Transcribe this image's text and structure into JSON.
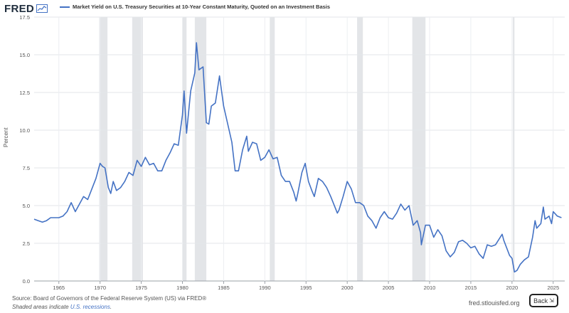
{
  "header": {
    "logo_text": "FRED",
    "logo_icon": "line-chart-icon"
  },
  "chart_data": {
    "type": "line",
    "title": "",
    "xlabel": "",
    "ylabel": "Percent",
    "xlim": [
      1962.0,
      2026.4
    ],
    "ylim": [
      0,
      17.5
    ],
    "grid": true,
    "legend": "top-left",
    "x_ticks": [
      "1965",
      "1970",
      "1975",
      "1980",
      "1985",
      "1990",
      "1995",
      "2000",
      "2005",
      "2010",
      "2015",
      "2020",
      "2025"
    ],
    "x_tick_values": [
      1965,
      1970,
      1975,
      1980,
      1985,
      1990,
      1995,
      2000,
      2005,
      2010,
      2015,
      2020,
      2025
    ],
    "y_ticks": [
      "0.0",
      "2.5",
      "5.0",
      "7.5",
      "10.0",
      "12.5",
      "15.0",
      "17.5"
    ],
    "y_tick_values": [
      0,
      2.5,
      5,
      7.5,
      10,
      12.5,
      15,
      17.5
    ],
    "recessions": [
      [
        1969.9,
        1970.9
      ],
      [
        1973.9,
        1975.2
      ],
      [
        1980.0,
        1980.5
      ],
      [
        1981.5,
        1982.9
      ],
      [
        1990.6,
        1991.2
      ],
      [
        2001.2,
        2001.9
      ],
      [
        2007.9,
        2009.5
      ],
      [
        2020.1,
        2020.3
      ]
    ],
    "line_color": "#4472c4",
    "recession_color": "#e3e5e8",
    "series": [
      {
        "name": "Market Yield on U.S. Treasury Securities at 10-Year Constant Maturity, Quoted on an Investment Basis",
        "x": [
          1962.0,
          1962.5,
          1963.0,
          1963.5,
          1964.0,
          1964.5,
          1965.0,
          1965.5,
          1966.0,
          1966.5,
          1967.0,
          1967.5,
          1968.0,
          1968.5,
          1969.0,
          1969.5,
          1970.0,
          1970.3,
          1970.6,
          1971.0,
          1971.3,
          1971.6,
          1972.0,
          1972.5,
          1973.0,
          1973.5,
          1974.0,
          1974.5,
          1975.0,
          1975.5,
          1976.0,
          1976.5,
          1977.0,
          1977.5,
          1978.0,
          1978.5,
          1979.0,
          1979.5,
          1980.0,
          1980.2,
          1980.5,
          1980.8,
          1981.0,
          1981.5,
          1981.7,
          1982.0,
          1982.5,
          1982.9,
          1983.2,
          1983.5,
          1984.0,
          1984.5,
          1985.0,
          1985.5,
          1986.0,
          1986.4,
          1986.8,
          1987.3,
          1987.8,
          1988.0,
          1988.5,
          1989.0,
          1989.5,
          1990.0,
          1990.5,
          1991.0,
          1991.5,
          1992.0,
          1992.5,
          1993.0,
          1993.5,
          1993.8,
          1994.0,
          1994.5,
          1994.9,
          1995.3,
          1995.7,
          1996.0,
          1996.5,
          1997.0,
          1997.5,
          1998.0,
          1998.8,
          1999.0,
          1999.5,
          2000.0,
          2000.5,
          2001.0,
          2001.5,
          2002.0,
          2002.5,
          2003.0,
          2003.5,
          2004.0,
          2004.5,
          2005.0,
          2005.5,
          2006.0,
          2006.5,
          2007.0,
          2007.5,
          2008.0,
          2008.5,
          2008.9,
          2009.0,
          2009.5,
          2010.0,
          2010.5,
          2011.0,
          2011.5,
          2012.0,
          2012.5,
          2013.0,
          2013.5,
          2014.0,
          2014.5,
          2015.0,
          2015.5,
          2016.0,
          2016.5,
          2017.0,
          2017.5,
          2018.0,
          2018.8,
          2019.0,
          2019.7,
          2020.0,
          2020.3,
          2020.6,
          2021.0,
          2021.5,
          2022.0,
          2022.5,
          2022.8,
          2023.0,
          2023.5,
          2023.8,
          2024.0,
          2024.5,
          2024.8,
          2025.0,
          2025.5,
          2026.0
        ],
        "values": [
          4.1,
          4.0,
          3.9,
          4.0,
          4.2,
          4.2,
          4.2,
          4.3,
          4.6,
          5.2,
          4.6,
          5.1,
          5.6,
          5.4,
          6.1,
          6.8,
          7.8,
          7.6,
          7.5,
          6.2,
          5.8,
          6.6,
          6.0,
          6.2,
          6.6,
          7.2,
          7.0,
          8.0,
          7.6,
          8.2,
          7.7,
          7.8,
          7.3,
          7.3,
          8.0,
          8.5,
          9.1,
          9.0,
          11.0,
          12.6,
          9.8,
          11.5,
          12.6,
          13.8,
          15.8,
          14.0,
          14.2,
          10.5,
          10.4,
          11.6,
          11.8,
          13.6,
          11.6,
          10.4,
          9.2,
          7.3,
          7.3,
          8.7,
          9.6,
          8.6,
          9.2,
          9.1,
          8.0,
          8.2,
          8.7,
          8.1,
          8.2,
          7.0,
          6.6,
          6.6,
          5.9,
          5.3,
          5.8,
          7.2,
          7.8,
          6.6,
          6.0,
          5.6,
          6.8,
          6.6,
          6.2,
          5.6,
          4.5,
          4.7,
          5.6,
          6.6,
          6.1,
          5.2,
          5.2,
          5.0,
          4.3,
          4.0,
          3.5,
          4.2,
          4.6,
          4.2,
          4.1,
          4.5,
          5.1,
          4.7,
          5.0,
          3.7,
          4.0,
          3.2,
          2.4,
          3.7,
          3.7,
          2.9,
          3.4,
          3.0,
          2.0,
          1.6,
          1.9,
          2.6,
          2.7,
          2.5,
          2.2,
          2.3,
          1.8,
          1.5,
          2.4,
          2.3,
          2.4,
          3.1,
          2.7,
          1.7,
          1.5,
          0.6,
          0.7,
          1.1,
          1.4,
          1.6,
          2.9,
          4.0,
          3.5,
          3.8,
          4.9,
          4.1,
          4.3,
          3.8,
          4.6,
          4.3,
          4.2
        ]
      }
    ]
  },
  "footer": {
    "source": "Source: Board of Governors of the Federal Reserve System (US) via FRED®",
    "shaded_prefix": "Shaded areas indicate ",
    "shaded_link": "U.S. recessions",
    "shaded_suffix": ".",
    "site": "fred.stlouisfed.org",
    "back_label": "Back",
    "back_icon": "expand-arrows-icon"
  }
}
